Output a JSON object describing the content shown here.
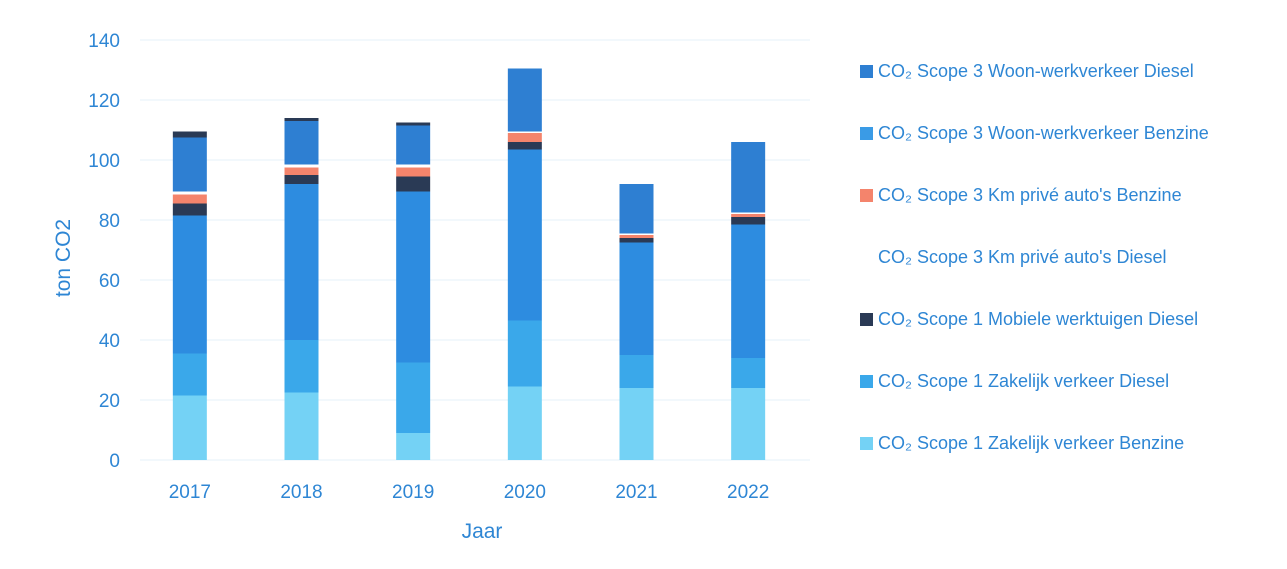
{
  "chart_data": {
    "type": "bar",
    "stacked": true,
    "categories": [
      "2017",
      "2018",
      "2019",
      "2020",
      "2021",
      "2022"
    ],
    "xlabel": "Jaar",
    "ylabel": "ton CO2",
    "ylim": [
      0,
      140
    ],
    "yticks": [
      "0",
      "20",
      "40",
      "60",
      "80",
      "100",
      "120",
      "140"
    ],
    "grid": true,
    "legend_position": "right",
    "series": [
      {
        "name": "CO₂ Scope 1 Zakelijk verkeer Benzine",
        "color": "#74d2f5",
        "values": [
          21.5,
          22.5,
          9,
          24.5,
          24,
          24
        ]
      },
      {
        "name": "CO₂ Scope 1 Zakelijk verkeer Diesel",
        "color": "#3aa8ea",
        "values": [
          14,
          17.5,
          23.5,
          22,
          11,
          10
        ]
      },
      {
        "name": "CO₂ Scope 1 Mobiele werktuigen Diesel",
        "color": "#2d8ce0",
        "values": [
          46,
          52,
          57,
          57,
          37.5,
          44.5
        ]
      },
      {
        "name": "CO₂ Scope 3 Km privé auto's Diesel",
        "color": "#2a3a55",
        "values": [
          4,
          3,
          5,
          2.5,
          1.5,
          2.5
        ]
      },
      {
        "name": "CO₂ Scope 3 Km privé auto's Benzine",
        "color": "#f4846c",
        "values": [
          3,
          2.5,
          3,
          3,
          1,
          1
        ]
      },
      {
        "name": "CO₂ Scope 3 Woon-werkverkeer Benzine",
        "color": "#ffffff",
        "values": [
          1,
          1,
          1,
          0.5,
          0.5,
          0.5
        ]
      },
      {
        "name": "CO₂ Scope 3 Woon-werkverkeer Diesel",
        "color": "#2e7fd2",
        "values": [
          18,
          14.5,
          13,
          21,
          16.5,
          23.5
        ]
      },
      {
        "name": "",
        "color": "#2a3a55",
        "values": [
          2,
          1,
          1,
          0,
          0,
          0
        ]
      }
    ],
    "legend": [
      {
        "label": "CO₂ Scope 3 Woon-werkverkeer Diesel",
        "color": "#2e7fd2"
      },
      {
        "label": "CO₂ Scope 3 Woon-werkverkeer Benzine",
        "color": "#3a9be6"
      },
      {
        "label": "CO₂ Scope 3 Km privé auto's Benzine",
        "color": "#f4846c"
      },
      {
        "label": "CO₂ Scope 3 Km privé auto's Diesel",
        "color": "#ffffff"
      },
      {
        "label": "CO₂ Scope 1 Mobiele werktuigen Diesel",
        "color": "#2a3a55"
      },
      {
        "label": "CO₂ Scope 1 Zakelijk verkeer Diesel",
        "color": "#3aa8ea"
      },
      {
        "label": "CO₂ Scope 1 Zakelijk verkeer Benzine",
        "color": "#74d2f5"
      }
    ]
  }
}
